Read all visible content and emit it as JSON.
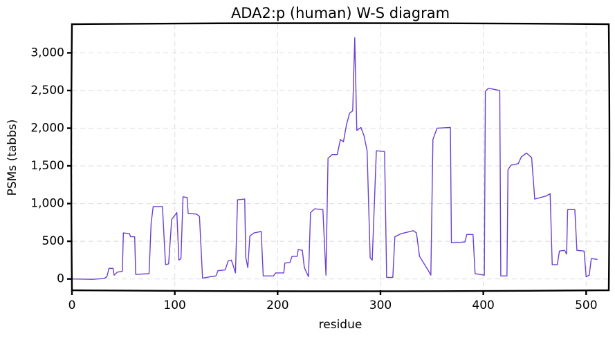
{
  "chart_data": {
    "type": "line",
    "title": "ADA2:p (human) W-S diagram",
    "xlabel": "residue",
    "ylabel": "PSMs (tabbs)",
    "color": "#6a3fd0",
    "grid": true,
    "xlim": [
      0,
      522
    ],
    "ylim": [
      -150,
      3380
    ],
    "xticks": [
      0,
      100,
      200,
      300,
      400,
      500
    ],
    "yticks": [
      0,
      500,
      {
        "value": 1000,
        "label": "1,000"
      },
      {
        "value": 1500,
        "label": "1,500"
      },
      {
        "value": 2000,
        "label": "2,000"
      },
      {
        "value": 2500,
        "label": "2,500"
      },
      {
        "value": 3000,
        "label": "3,000"
      }
    ],
    "x": [
      0,
      20,
      31,
      34,
      36,
      40,
      41,
      44,
      49,
      50,
      56,
      57,
      61,
      62,
      75,
      77,
      79,
      88,
      91,
      94,
      97,
      102,
      104,
      106,
      108,
      112,
      113,
      121,
      124,
      127,
      135,
      140,
      142,
      149,
      152,
      155,
      157,
      159,
      161,
      168,
      169,
      171,
      173,
      177,
      184,
      186,
      196,
      198,
      206,
      207,
      212,
      214,
      219,
      220,
      224,
      226,
      230,
      232,
      236,
      244,
      247,
      249,
      253,
      258,
      261,
      264,
      267,
      270,
      273,
      275,
      277,
      281,
      284,
      287,
      290,
      292,
      296,
      304,
      306,
      312,
      314,
      320,
      332,
      335,
      338,
      347,
      349,
      351,
      355,
      368,
      369,
      382,
      384,
      390,
      392,
      401,
      402,
      405,
      416,
      417,
      423,
      424,
      427,
      434,
      437,
      442,
      447,
      450,
      461,
      465,
      467,
      472,
      474,
      479,
      481,
      482,
      489,
      491,
      498,
      500,
      503,
      505,
      511
    ],
    "values": [
      0,
      -5,
      5,
      30,
      140,
      140,
      50,
      90,
      100,
      610,
      600,
      560,
      560,
      60,
      70,
      740,
      960,
      960,
      190,
      200,
      790,
      880,
      250,
      270,
      1090,
      1080,
      870,
      860,
      830,
      10,
      30,
      40,
      110,
      120,
      240,
      250,
      170,
      80,
      1050,
      1060,
      290,
      150,
      570,
      610,
      630,
      40,
      40,
      80,
      80,
      210,
      220,
      300,
      300,
      390,
      380,
      150,
      30,
      880,
      930,
      920,
      50,
      1600,
      1650,
      1650,
      1850,
      1820,
      2050,
      2200,
      2230,
      3200,
      1970,
      2010,
      1900,
      1700,
      280,
      250,
      1700,
      1690,
      20,
      20,
      560,
      600,
      640,
      610,
      300,
      100,
      50,
      1850,
      2000,
      2010,
      480,
      490,
      590,
      590,
      70,
      50,
      2490,
      2530,
      2500,
      40,
      40,
      1450,
      1510,
      1530,
      1620,
      1670,
      1610,
      1060,
      1100,
      1130,
      190,
      190,
      370,
      380,
      330,
      920,
      920,
      380,
      370,
      30,
      50,
      270,
      260
    ]
  }
}
